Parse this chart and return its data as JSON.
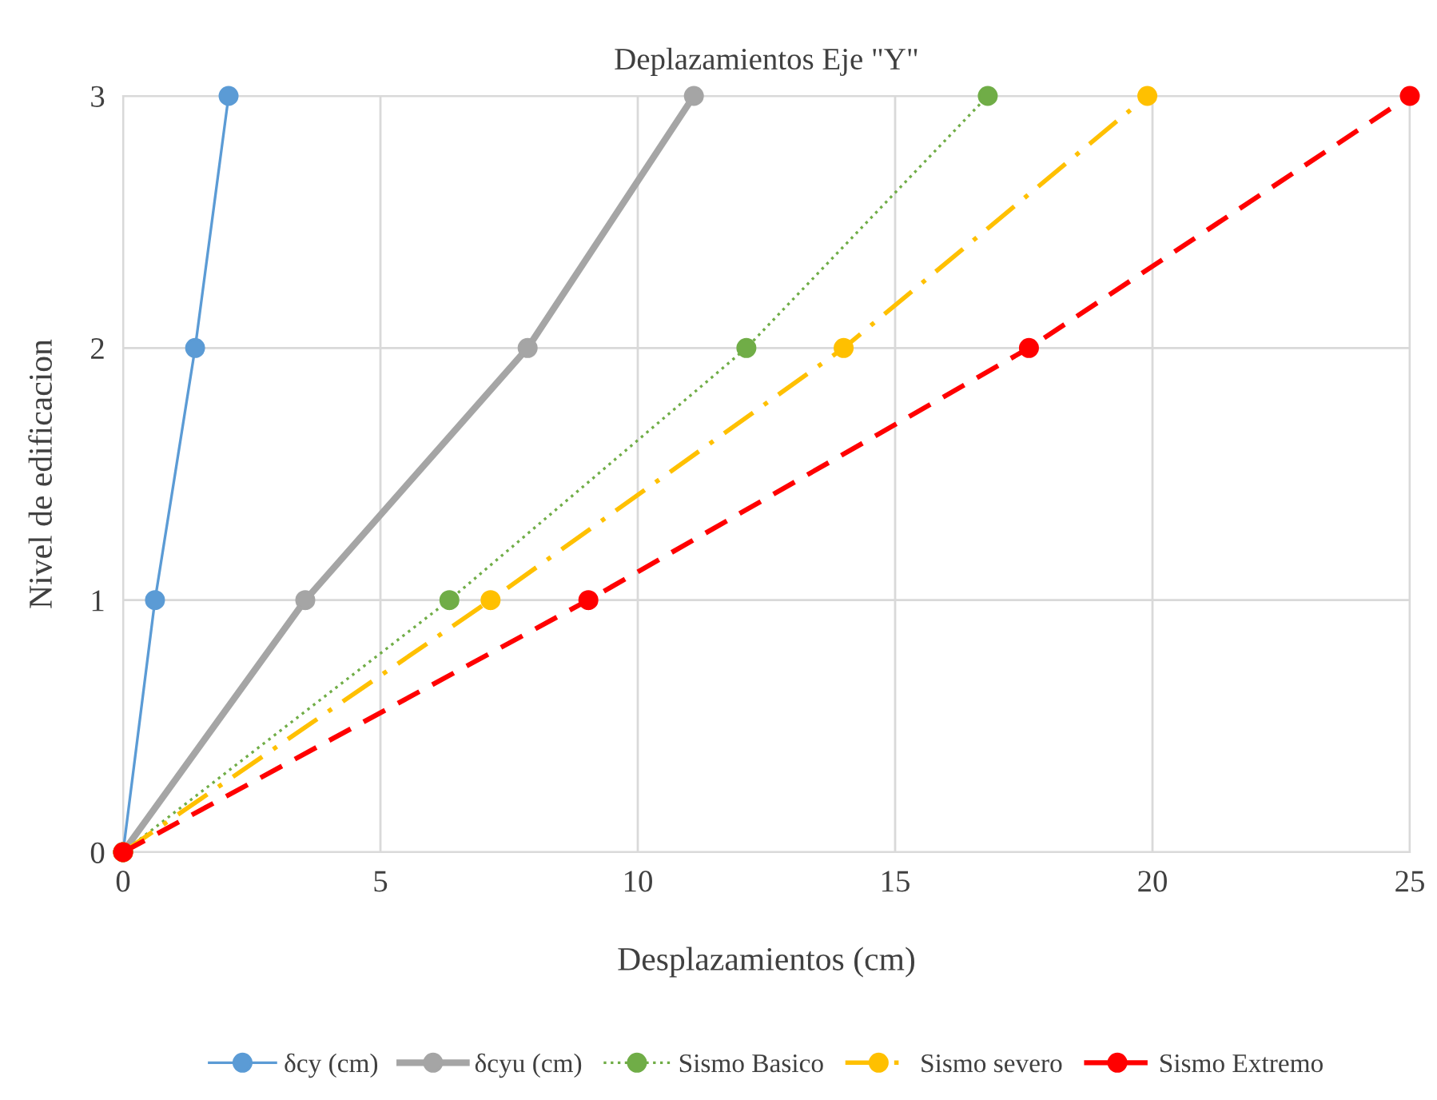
{
  "chart_data": {
    "type": "line",
    "title": "Deplazamientos Eje \"Y\"",
    "xlabel": "Desplazamientos (cm)",
    "ylabel": "Nivel de edificacion",
    "xlim": [
      0,
      25
    ],
    "xticks": [
      0,
      5,
      10,
      15,
      20,
      25
    ],
    "ylim": [
      0,
      3
    ],
    "yticks": [
      0,
      1,
      2,
      3
    ],
    "grid": true,
    "legend": "bottom",
    "marker": "circle",
    "series": [
      {
        "name": "δcy (cm)",
        "color": "#5b9bd5",
        "line_style": "solid",
        "x": [
          0,
          0.62,
          1.4,
          2.05
        ],
        "values": [
          0,
          1,
          2,
          3
        ]
      },
      {
        "name": "δcyu (cm)",
        "color": "#a5a5a5",
        "line_style": "solid",
        "x": [
          0,
          3.54,
          7.86,
          11.09
        ],
        "values": [
          0,
          1,
          2,
          3
        ]
      },
      {
        "name": "Sismo Basico",
        "color": "#70ad47",
        "line_style": "dotted",
        "x": [
          0,
          6.34,
          12.11,
          16.8
        ],
        "values": [
          0,
          1,
          2,
          3
        ]
      },
      {
        "name": "Sismo severo",
        "color": "#ffc000",
        "line_style": "dashdot",
        "x": [
          0,
          7.14,
          14.0,
          19.9
        ],
        "values": [
          0,
          1,
          2,
          3
        ]
      },
      {
        "name": "Sismo Extremo",
        "color": "#ff0000",
        "line_style": "dashed",
        "x": [
          0,
          9.04,
          17.6,
          25
        ],
        "values": [
          0,
          1,
          2,
          3
        ]
      }
    ]
  }
}
